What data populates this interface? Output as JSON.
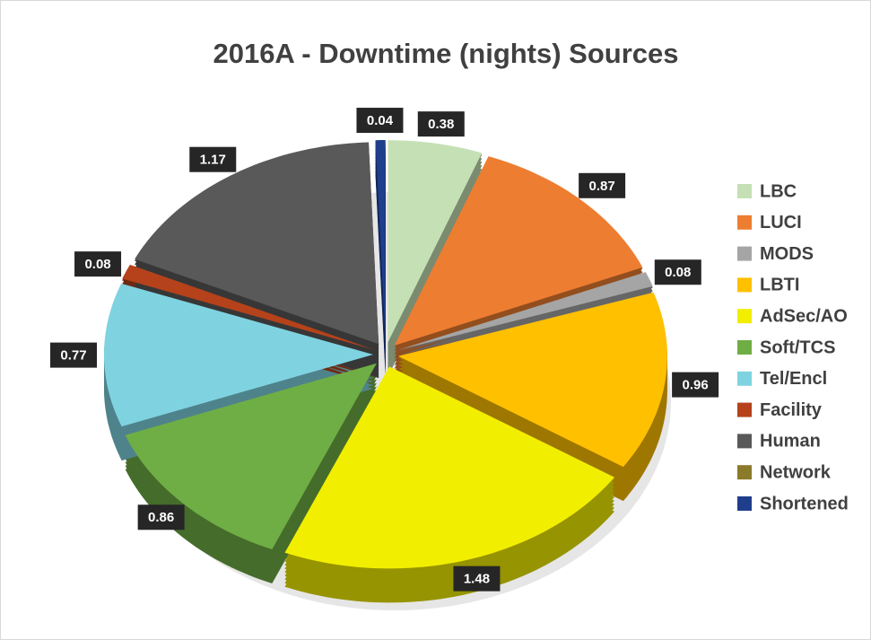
{
  "chart_data": {
    "type": "pie",
    "title": "2016A - Downtime (nights) Sources",
    "categories": [
      "LBC",
      "LUCI",
      "MODS",
      "LBTI",
      "AdSec/AO",
      "Soft/TCS",
      "Tel/Encl",
      "Facility",
      "Human",
      "Network",
      "Shortened"
    ],
    "values": [
      0.38,
      0.87,
      0.08,
      0.96,
      1.48,
      0.86,
      0.77,
      0.08,
      1.17,
      0,
      0.04
    ],
    "colors": [
      "#c5e0b4",
      "#ed7d31",
      "#a5a5a5",
      "#ffc000",
      "#f2ee00",
      "#6fae45",
      "#7fd3e0",
      "#b5421b",
      "#595959",
      "#8b7a2a",
      "#1f3e8c"
    ],
    "legend": "right"
  }
}
